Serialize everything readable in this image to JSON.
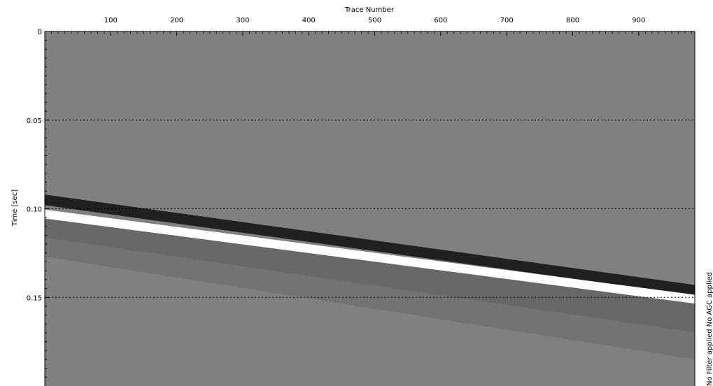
{
  "chart_data": {
    "type": "heatmap",
    "title": "",
    "xlabel": "Trace Number",
    "ylabel": "Time [sec]",
    "x_axis_position": "top",
    "xlim": [
      0,
      985
    ],
    "ylim": [
      0,
      0.2
    ],
    "y_inverted": true,
    "x_ticks": [
      100,
      200,
      300,
      400,
      500,
      600,
      700,
      800,
      900
    ],
    "x_tick_labels": [
      "100",
      "200",
      "300",
      "400",
      "500",
      "600",
      "700",
      "800",
      "900"
    ],
    "y_ticks": [
      0,
      0.05,
      0.1,
      0.15
    ],
    "y_tick_labels": [
      "0",
      "0.05",
      "0.10",
      "0.15"
    ],
    "gridlines_y": [
      0.05,
      0.1,
      0.15
    ],
    "grid_style": "dotted",
    "colormap": "grayscale",
    "background_gray": "#808080",
    "event": {
      "description": "linear moveout wavelet",
      "trace_range": [
        0,
        985
      ],
      "trough_time": [
        0.095,
        0.146
      ],
      "peak_time": [
        0.103,
        0.151
      ],
      "coda_end_time": [
        0.127,
        0.185
      ]
    },
    "side_annotation": "No Filter applied  No AGC applied"
  },
  "colors": {
    "trough": "#202020",
    "peak": "#ffffff",
    "coda_dark": "#686868",
    "coda_light": "#737373",
    "background": "#808080",
    "grid": "#000000"
  }
}
